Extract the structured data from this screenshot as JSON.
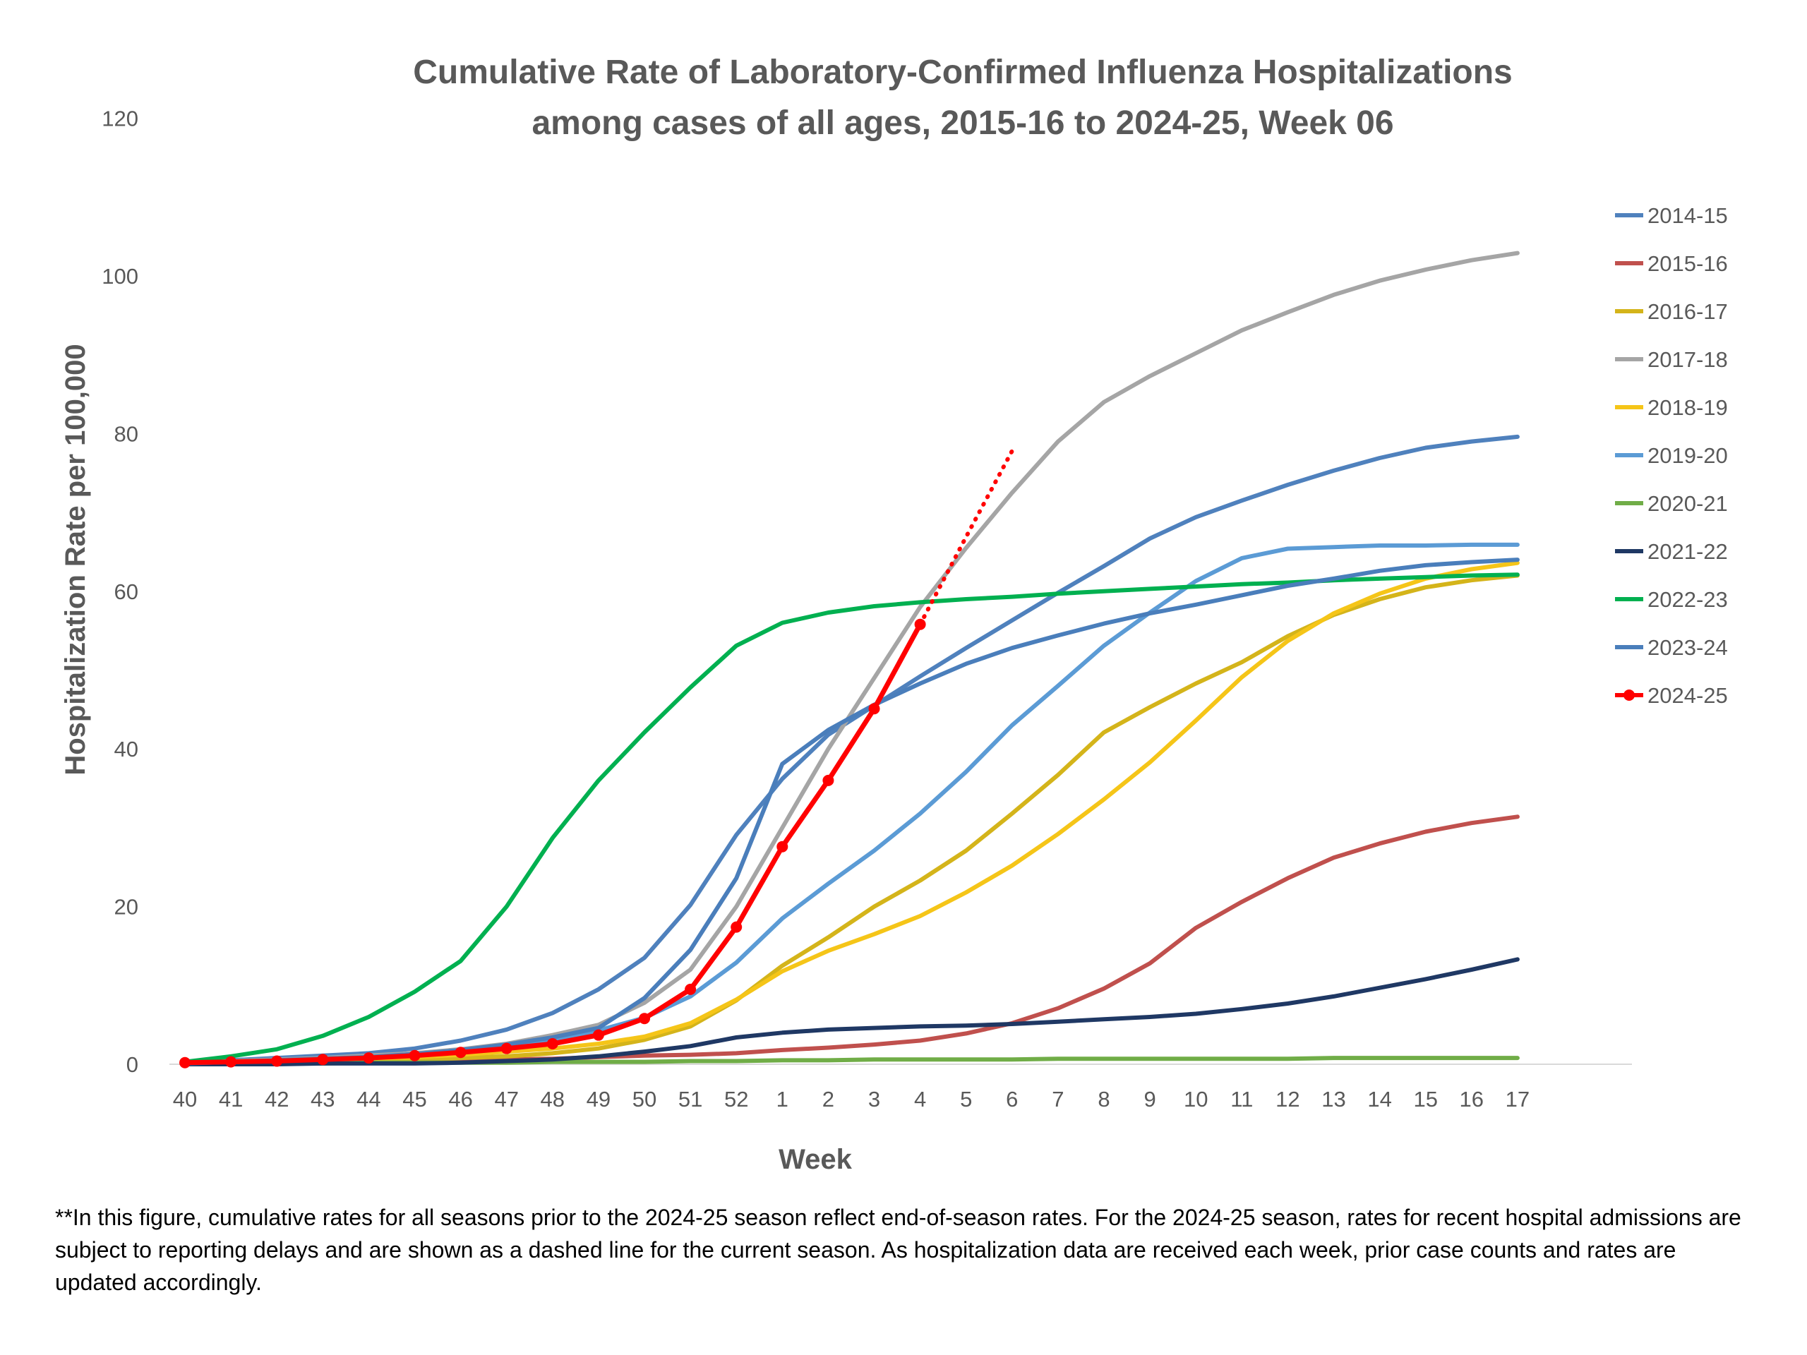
{
  "chart_data": {
    "type": "line",
    "title": [
      "Cumulative Rate of Laboratory-Confirmed Influenza Hospitalizations",
      "among cases of all ages, 2015-16 to 2024-25, Week 06"
    ],
    "xlabel": "Week",
    "ylabel": "Hospitalization Rate per 100,000",
    "categories": [
      "40",
      "41",
      "42",
      "43",
      "44",
      "45",
      "46",
      "47",
      "48",
      "49",
      "50",
      "51",
      "52",
      "1",
      "2",
      "3",
      "4",
      "5",
      "6",
      "7",
      "8",
      "9",
      "10",
      "11",
      "12",
      "13",
      "14",
      "15",
      "16",
      "17"
    ],
    "yticks": [
      "0",
      "20",
      "40",
      "60",
      "80",
      "100",
      "120"
    ],
    "ylim": [
      0,
      120
    ],
    "grid": false,
    "legend_position": "right",
    "series": [
      {
        "name": "2014-15",
        "color": "#4f81bd",
        "marker": false,
        "values": [
          0.3,
          0.5,
          0.8,
          1.1,
          1.4,
          2.0,
          3.0,
          4.4,
          6.5,
          9.5,
          13.5,
          20.2,
          29.1,
          36.2,
          41.8,
          45.5,
          49.2,
          52.8,
          56.3,
          59.8,
          63.2,
          66.7,
          69.4,
          71.5,
          73.5,
          75.3,
          76.9,
          78.2,
          79.0,
          79.6
        ]
      },
      {
        "name": "2015-16",
        "color": "#c0504d",
        "marker": false,
        "values": [
          0.0,
          0.1,
          0.1,
          0.2,
          0.3,
          0.4,
          0.5,
          0.6,
          0.7,
          0.9,
          1.1,
          1.2,
          1.4,
          1.8,
          2.1,
          2.5,
          3.0,
          3.9,
          5.2,
          7.1,
          9.6,
          12.8,
          17.3,
          20.6,
          23.6,
          26.2,
          28.0,
          29.5,
          30.6,
          31.4
        ]
      },
      {
        "name": "2016-17",
        "color": "#d4b41a",
        "marker": false,
        "values": [
          0.0,
          0.1,
          0.2,
          0.3,
          0.4,
          0.6,
          0.8,
          1.0,
          1.4,
          2.0,
          3.1,
          4.8,
          8.1,
          12.5,
          16.1,
          20.0,
          23.3,
          27.1,
          31.8,
          36.7,
          42.1,
          45.3,
          48.3,
          51.0,
          54.3,
          57.0,
          59.0,
          60.5,
          61.4,
          62.0
        ]
      },
      {
        "name": "2017-18",
        "color": "#a5a5a5",
        "marker": false,
        "values": [
          0.2,
          0.4,
          0.6,
          0.8,
          1.1,
          1.4,
          1.9,
          2.6,
          3.7,
          5.0,
          7.8,
          12.0,
          20.0,
          30.0,
          40.0,
          49.0,
          58.0,
          65.5,
          72.5,
          79.0,
          84.0,
          87.3,
          90.2,
          93.1,
          95.4,
          97.6,
          99.4,
          100.8,
          102.0,
          102.9
        ]
      },
      {
        "name": "2018-19",
        "color": "#f5c518",
        "marker": false,
        "values": [
          0.1,
          0.2,
          0.3,
          0.5,
          0.7,
          0.9,
          1.2,
          1.6,
          2.0,
          2.6,
          3.5,
          5.2,
          8.2,
          11.8,
          14.4,
          16.5,
          18.8,
          21.8,
          25.2,
          29.2,
          33.6,
          38.3,
          43.6,
          49.1,
          53.7,
          57.2,
          59.7,
          61.6,
          62.8,
          63.6
        ]
      },
      {
        "name": "2019-20",
        "color": "#5b9bd5",
        "marker": false,
        "values": [
          0.1,
          0.3,
          0.5,
          0.7,
          0.9,
          1.3,
          1.7,
          2.3,
          3.1,
          4.3,
          5.9,
          8.6,
          12.9,
          18.5,
          22.9,
          27.1,
          31.8,
          37.1,
          43.0,
          48.0,
          53.1,
          57.3,
          61.3,
          64.2,
          65.4,
          65.6,
          65.8,
          65.8,
          65.9,
          65.9
        ]
      },
      {
        "name": "2020-21",
        "color": "#70ad47",
        "marker": false,
        "values": [
          0.0,
          0.1,
          0.1,
          0.1,
          0.2,
          0.2,
          0.2,
          0.2,
          0.3,
          0.3,
          0.3,
          0.4,
          0.4,
          0.5,
          0.5,
          0.6,
          0.6,
          0.6,
          0.6,
          0.7,
          0.7,
          0.7,
          0.7,
          0.7,
          0.7,
          0.8,
          0.8,
          0.8,
          0.8,
          0.8
        ]
      },
      {
        "name": "2021-22",
        "color": "#1f3864",
        "marker": false,
        "values": [
          0.0,
          0.0,
          0.0,
          0.1,
          0.1,
          0.1,
          0.2,
          0.4,
          0.6,
          1.0,
          1.6,
          2.3,
          3.4,
          4.0,
          4.4,
          4.6,
          4.8,
          4.9,
          5.1,
          5.4,
          5.7,
          6.0,
          6.4,
          7.0,
          7.7,
          8.6,
          9.7,
          10.8,
          12.0,
          13.3
        ]
      },
      {
        "name": "2022-23",
        "color": "#00b050",
        "marker": false,
        "values": [
          0.3,
          1.0,
          1.9,
          3.6,
          6.0,
          9.2,
          13.1,
          20.0,
          28.7,
          36.0,
          42.1,
          47.8,
          53.1,
          56.0,
          57.3,
          58.1,
          58.6,
          59.0,
          59.3,
          59.7,
          60.0,
          60.3,
          60.6,
          60.9,
          61.1,
          61.4,
          61.6,
          61.8,
          62.0,
          62.1
        ]
      },
      {
        "name": "2023-24",
        "color": "#4a7ebb",
        "marker": false,
        "values": [
          0.1,
          0.3,
          0.5,
          0.7,
          0.9,
          1.3,
          1.8,
          2.5,
          3.4,
          4.6,
          8.4,
          14.5,
          23.6,
          38.1,
          42.4,
          45.6,
          48.3,
          50.8,
          52.8,
          54.4,
          55.9,
          57.2,
          58.3,
          59.5,
          60.7,
          61.6,
          62.6,
          63.3,
          63.7,
          64.0
        ]
      },
      {
        "name": "2024-25",
        "color": "#ff0000",
        "marker": true,
        "values": [
          0.2,
          0.3,
          0.4,
          0.6,
          0.8,
          1.1,
          1.5,
          2.0,
          2.6,
          3.7,
          5.8,
          9.5,
          17.4,
          27.6,
          36.0,
          45.1,
          55.8,
          null,
          null,
          null,
          null,
          null,
          null,
          null,
          null,
          null,
          null,
          null,
          null,
          null
        ],
        "projected_dotted": {
          "start_index": 16,
          "end_index": 18,
          "values": [
            55.8,
            66.9,
            77.8
          ]
        }
      }
    ]
  },
  "footnote": "**In this figure, cumulative rates for all seasons prior to the 2024-25 season reflect end-of-season rates. For the 2024-25 season, rates for recent hospital admissions are subject to reporting delays and are shown as a dashed line for the current season. As hospitalization data are received each week, prior case counts and rates are updated accordingly."
}
